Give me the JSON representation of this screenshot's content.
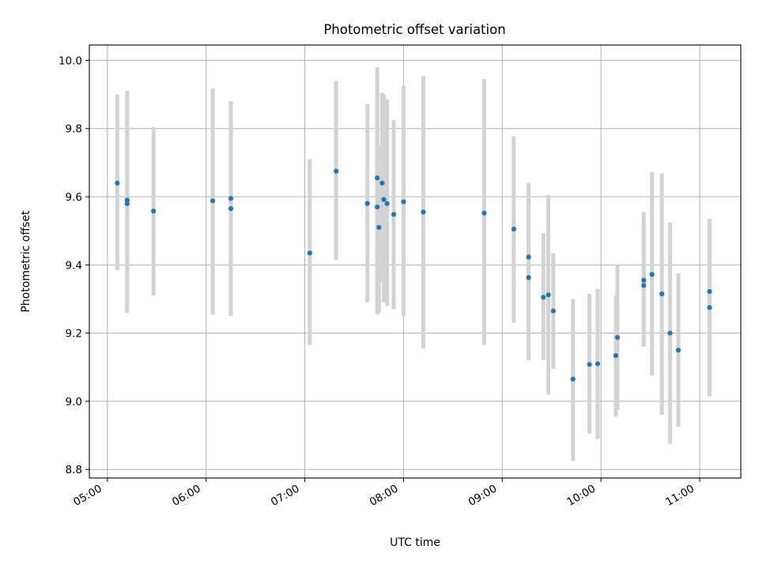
{
  "chart_data": {
    "type": "scatter",
    "title": "Photometric offset variation",
    "xlabel": "UTC time",
    "ylabel": "Photometric offset",
    "x_type": "time",
    "xlim": [
      "04:49",
      "11:25"
    ],
    "ylim": [
      8.775,
      10.045
    ],
    "x_ticks": [
      "05:00",
      "06:00",
      "07:00",
      "08:00",
      "09:00",
      "10:00",
      "11:00"
    ],
    "y_ticks": [
      8.8,
      9.0,
      9.2,
      9.4,
      9.6,
      9.8,
      10.0
    ],
    "y_tick_labels": [
      "8.8",
      "9.0",
      "9.2",
      "9.4",
      "9.6",
      "9.8",
      "10.0"
    ],
    "grid": true,
    "colors": {
      "points": "#1f77b4",
      "error_bars": "#d3d3d3",
      "grid": "#b0b0b0"
    },
    "series": [
      {
        "points": [
          {
            "x": "05:06",
            "y": 9.64,
            "ylow": 9.385,
            "yhigh": 9.9
          },
          {
            "x": "05:12",
            "y": 9.59,
            "ylow": 9.26,
            "yhigh": 9.91
          },
          {
            "x": "05:12",
            "y": 9.58,
            "ylow": 9.26,
            "yhigh": 9.91
          },
          {
            "x": "05:28",
            "y": 9.558,
            "ylow": 9.31,
            "yhigh": 9.805
          },
          {
            "x": "06:04",
            "y": 9.588,
            "ylow": 9.255,
            "yhigh": 9.918
          },
          {
            "x": "06:15",
            "y": 9.595,
            "ylow": 9.25,
            "yhigh": 9.88
          },
          {
            "x": "06:15",
            "y": 9.565,
            "ylow": 9.25,
            "yhigh": 9.88
          },
          {
            "x": "07:03",
            "y": 9.435,
            "ylow": 9.165,
            "yhigh": 9.71
          },
          {
            "x": "07:19",
            "y": 9.675,
            "ylow": 9.415,
            "yhigh": 9.94
          },
          {
            "x": "07:38",
            "y": 9.58,
            "ylow": 9.29,
            "yhigh": 9.872
          },
          {
            "x": "07:44",
            "y": 9.655,
            "ylow": 9.37,
            "yhigh": 9.98
          },
          {
            "x": "07:44",
            "y": 9.57,
            "ylow": 9.255,
            "yhigh": 9.95
          },
          {
            "x": "07:45",
            "y": 9.51,
            "ylow": 9.26,
            "yhigh": 9.75
          },
          {
            "x": "07:47",
            "y": 9.64,
            "ylow": 9.35,
            "yhigh": 9.905
          },
          {
            "x": "07:48",
            "y": 9.592,
            "ylow": 9.29,
            "yhigh": 9.9
          },
          {
            "x": "07:50",
            "y": 9.58,
            "ylow": 9.28,
            "yhigh": 9.885
          },
          {
            "x": "07:54",
            "y": 9.548,
            "ylow": 9.27,
            "yhigh": 9.825
          },
          {
            "x": "08:00",
            "y": 9.585,
            "ylow": 9.25,
            "yhigh": 9.925
          },
          {
            "x": "08:12",
            "y": 9.555,
            "ylow": 9.155,
            "yhigh": 9.955
          },
          {
            "x": "08:49",
            "y": 9.552,
            "ylow": 9.165,
            "yhigh": 9.945
          },
          {
            "x": "09:07",
            "y": 9.505,
            "ylow": 9.23,
            "yhigh": 9.778
          },
          {
            "x": "09:16",
            "y": 9.423,
            "ylow": 9.2,
            "yhigh": 9.64
          },
          {
            "x": "09:16",
            "y": 9.363,
            "ylow": 9.12,
            "yhigh": 9.605
          },
          {
            "x": "09:25",
            "y": 9.305,
            "ylow": 9.12,
            "yhigh": 9.493
          },
          {
            "x": "09:28",
            "y": 9.312,
            "ylow": 9.02,
            "yhigh": 9.605
          },
          {
            "x": "09:31",
            "y": 9.265,
            "ylow": 9.095,
            "yhigh": 9.435
          },
          {
            "x": "09:43",
            "y": 9.065,
            "ylow": 8.825,
            "yhigh": 9.3
          },
          {
            "x": "09:53",
            "y": 9.108,
            "ylow": 8.905,
            "yhigh": 9.315
          },
          {
            "x": "09:58",
            "y": 9.11,
            "ylow": 8.89,
            "yhigh": 9.33
          },
          {
            "x": "10:09",
            "y": 9.134,
            "ylow": 8.955,
            "yhigh": 9.31
          },
          {
            "x": "10:10",
            "y": 9.187,
            "ylow": 8.975,
            "yhigh": 9.4
          },
          {
            "x": "10:26",
            "y": 9.355,
            "ylow": 9.16,
            "yhigh": 9.555
          },
          {
            "x": "10:26",
            "y": 9.34,
            "ylow": 9.16,
            "yhigh": 9.525
          },
          {
            "x": "10:31",
            "y": 9.372,
            "ylow": 9.075,
            "yhigh": 9.672
          },
          {
            "x": "10:37",
            "y": 9.315,
            "ylow": 8.96,
            "yhigh": 9.668
          },
          {
            "x": "10:42",
            "y": 9.2,
            "ylow": 8.875,
            "yhigh": 9.525
          },
          {
            "x": "10:47",
            "y": 9.15,
            "ylow": 8.925,
            "yhigh": 9.375
          },
          {
            "x": "11:06",
            "y": 9.322,
            "ylow": 9.105,
            "yhigh": 9.535
          },
          {
            "x": "11:06",
            "y": 9.275,
            "ylow": 9.015,
            "yhigh": 9.535
          }
        ]
      }
    ]
  }
}
